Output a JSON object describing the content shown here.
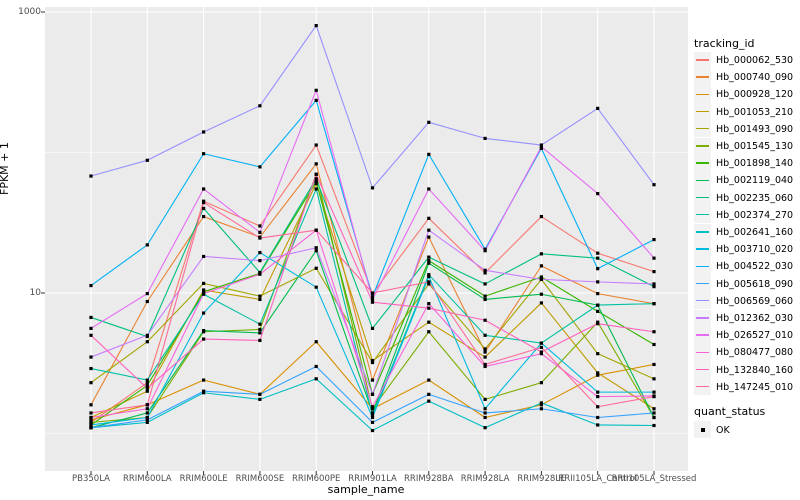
{
  "window": {
    "description": "R ggplot2 line chart of gene expression (FPKM) across rubber tree samples"
  },
  "chart_data": {
    "type": "line",
    "title": "",
    "xlabel": "sample_name",
    "ylabel": "FPKM + 1",
    "y_scale": "log10",
    "ylim": [
      0.55,
      1075
    ],
    "y_tick_labels": [
      "1000",
      "10"
    ],
    "y_tick_values": [
      1000,
      10
    ],
    "y_gridlines_major": [
      1000,
      10
    ],
    "y_gridlines_minor": [
      100,
      1
    ],
    "grid": true,
    "panel_bg": "#EBEBEB",
    "grid_color": "#FFFFFF",
    "point_marker": {
      "shape": "square",
      "color": "#000000",
      "size": 3.2
    },
    "categories": [
      "PB350LA",
      "RRIM600LA",
      "RRIM600LE",
      "RRIM600SE",
      "RRIM600PE",
      "RRIM901LA",
      "RRIM928BA",
      "RRIM928LA",
      "RRIM928LE",
      "RRII105LA_Control",
      "RRII105LA_Stressed"
    ],
    "legend": {
      "title": "tracking_id",
      "position": "right"
    },
    "legend2": {
      "title": "quant_status",
      "items": [
        {
          "label": "OK",
          "marker": "black-square"
        }
      ]
    },
    "series": [
      {
        "name": "Hb_000062_530",
        "color": "#F8766D",
        "values": [
          1.2,
          2.3,
          45,
          30,
          113,
          9.9,
          34,
          13.9,
          35,
          19.2,
          14.2
        ]
      },
      {
        "name": "Hb_000740_090",
        "color": "#EA8331",
        "values": [
          1.6,
          8.7,
          35,
          25,
          83,
          2.4,
          25,
          3.8,
          15.6,
          9.9,
          8.4
        ]
      },
      {
        "name": "Hb_000928_120",
        "color": "#D89000",
        "values": [
          1.25,
          1.6,
          2.4,
          1.9,
          4.5,
          1.5,
          2.4,
          1.3,
          1.6,
          2.6,
          3.1
        ]
      },
      {
        "name": "Hb_001053_210",
        "color": "#C09B00",
        "values": [
          1.3,
          2.0,
          10.5,
          9.0,
          60,
          3.3,
          6.2,
          3.5,
          8.5,
          2.7,
          1.5
        ]
      },
      {
        "name": "Hb_001493_090",
        "color": "#A3A500",
        "values": [
          2.3,
          4.5,
          11.7,
          9.5,
          15,
          3.2,
          11.6,
          4.0,
          12.5,
          3.7,
          2.45
        ]
      },
      {
        "name": "Hb_001545_130",
        "color": "#7CAE00",
        "values": [
          1.2,
          1.3,
          5.3,
          5.5,
          70,
          1.5,
          5.3,
          1.75,
          2.3,
          6.2,
          1.3
        ]
      },
      {
        "name": "Hb_001898_140",
        "color": "#39B600",
        "values": [
          1.15,
          2.2,
          10.2,
          13.8,
          62,
          1.9,
          17,
          9.5,
          13,
          7.4,
          4.3
        ]
      },
      {
        "name": "Hb_002119_040",
        "color": "#00BB4E",
        "values": [
          1.1,
          1.4,
          5.4,
          5.2,
          20,
          1.4,
          16.3,
          9.0,
          9.8,
          8.2,
          1.3
        ]
      },
      {
        "name": "Hb_002235_060",
        "color": "#00BF7D",
        "values": [
          6.7,
          4.9,
          40,
          14,
          65,
          5.6,
          18,
          11.6,
          19,
          17.7,
          11.1
        ]
      },
      {
        "name": "Hb_002374_270",
        "color": "#00C1A3",
        "values": [
          2.9,
          2.4,
          9.8,
          6.0,
          55,
          1.35,
          13.5,
          5.0,
          4.4,
          8.2,
          8.4
        ]
      },
      {
        "name": "Hb_002641_160",
        "color": "#00BFC4",
        "values": [
          1.1,
          1.2,
          1.95,
          1.75,
          2.45,
          1.05,
          1.7,
          1.1,
          1.65,
          1.15,
          1.14
        ]
      },
      {
        "name": "Hb_003710_020",
        "color": "#00BAE0",
        "values": [
          1.15,
          1.3,
          7.2,
          19.4,
          11,
          1.3,
          13.1,
          1.5,
          4.4,
          1.97,
          1.97
        ]
      },
      {
        "name": "Hb_004522_030",
        "color": "#00B0F6",
        "values": [
          11.3,
          22,
          98,
          79,
          235,
          9.4,
          97,
          20.5,
          107,
          14.9,
          24
        ]
      },
      {
        "name": "Hb_005618_090",
        "color": "#35A2FF",
        "values": [
          1.1,
          1.25,
          2.0,
          1.9,
          3.0,
          1.2,
          1.9,
          1.4,
          1.5,
          1.3,
          1.4
        ]
      },
      {
        "name": "Hb_006569_060",
        "color": "#9590FF",
        "values": [
          68,
          88,
          140,
          215,
          800,
          56,
          164,
          126,
          113,
          206,
          59
        ]
      },
      {
        "name": "Hb_012362_030",
        "color": "#C77CFF",
        "values": [
          3.5,
          5.0,
          18.2,
          17,
          21,
          1.9,
          28,
          14.5,
          12.5,
          12.0,
          11.6
        ]
      },
      {
        "name": "Hb_026527_010",
        "color": "#E76BF3",
        "values": [
          5.6,
          9.9,
          55,
          27,
          277,
          9.0,
          55,
          20,
          110,
          51,
          17.7
        ]
      },
      {
        "name": "Hb_080477_080",
        "color": "#FA62DB",
        "values": [
          1.3,
          1.5,
          9.9,
          13.6,
          28,
          1.55,
          8.4,
          3.0,
          3.7,
          1.83,
          1.85
        ]
      },
      {
        "name": "Hb_132840_160",
        "color": "#FF62BC",
        "values": [
          5.0,
          2.1,
          4.7,
          4.6,
          70,
          8.6,
          7.8,
          6.4,
          3.8,
          6.05,
          5.3
        ]
      },
      {
        "name": "Hb_147245_010",
        "color": "#FF6A98",
        "values": [
          1.4,
          1.6,
          44,
          24.6,
          28,
          10,
          12,
          3.1,
          4.1,
          1.55,
          1.83
        ]
      }
    ]
  }
}
